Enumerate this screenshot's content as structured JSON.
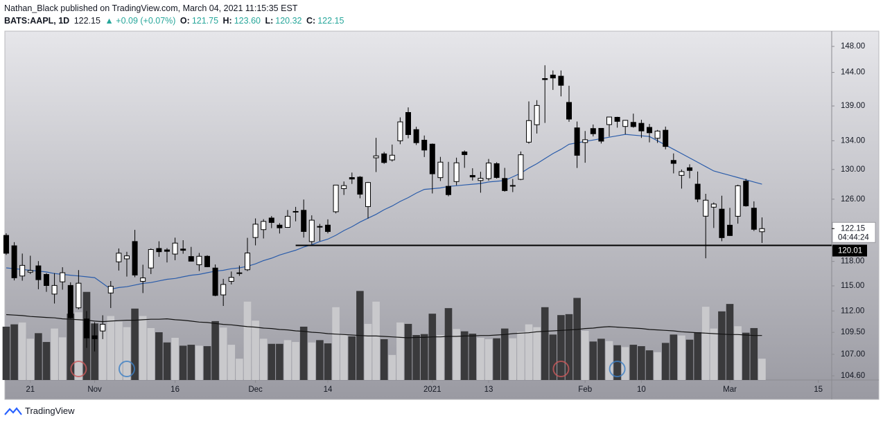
{
  "header": {
    "publisher": "Nathan_Black published on TradingView.com, March 04, 2021 11:15:35 EST",
    "symbol": "BATS:AAPL, 1D",
    "last": "122.15",
    "change": "▲ +0.09 (+0.07%)",
    "o_label": "O:",
    "o": "121.75",
    "h_label": "H:",
    "h": "123.60",
    "l_label": "L:",
    "l": "120.32",
    "c_label": "C:",
    "c": "122.15"
  },
  "chart_data": {
    "type": "candlestick",
    "candles": [
      [
        121.28,
        121.55,
        118.81,
        119.02
      ],
      [
        119.96,
        120.42,
        115.66,
        115.98
      ],
      [
        116.2,
        118.98,
        115.63,
        117.51
      ],
      [
        116.67,
        118.71,
        116.45,
        116.87
      ],
      [
        117.45,
        118.04,
        114.59,
        115.75
      ],
      [
        116.39,
        116.55,
        114.28,
        115.04
      ],
      [
        114.01,
        116.55,
        112.88,
        115.05
      ],
      [
        115.49,
        117.28,
        114.54,
        116.6
      ],
      [
        115.05,
        115.43,
        111.1,
        111.2
      ],
      [
        112.37,
        116.93,
        112.2,
        115.32
      ],
      [
        111.06,
        111.99,
        107.72,
        108.86
      ],
      [
        109.11,
        110.68,
        107.32,
        108.77
      ],
      [
        109.66,
        111.49,
        108.73,
        110.44
      ],
      [
        114.14,
        115.59,
        112.35,
        114.95
      ],
      [
        117.95,
        119.62,
        116.87,
        119.03
      ],
      [
        118.32,
        119.2,
        116.13,
        118.69
      ],
      [
        120.5,
        121.99,
        116.05,
        116.32
      ],
      [
        115.55,
        117.59,
        114.13,
        115.97
      ],
      [
        117.19,
        119.63,
        116.44,
        119.49
      ],
      [
        119.62,
        120.53,
        118.57,
        119.21
      ],
      [
        119.44,
        119.67,
        117.87,
        119.26
      ],
      [
        118.92,
        120.99,
        118.15,
        120.3
      ],
      [
        119.55,
        120.67,
        118.96,
        119.39
      ],
      [
        118.61,
        119.82,
        118.0,
        118.03
      ],
      [
        117.59,
        119.06,
        116.81,
        118.64
      ],
      [
        118.64,
        118.77,
        117.29,
        117.34
      ],
      [
        117.18,
        117.62,
        113.75,
        113.85
      ],
      [
        113.91,
        115.85,
        112.59,
        115.17
      ],
      [
        115.55,
        116.75,
        115.17,
        116.03
      ],
      [
        116.57,
        117.49,
        116.22,
        116.59
      ],
      [
        116.97,
        120.97,
        116.81,
        119.05
      ],
      [
        121.01,
        123.47,
        120.01,
        122.72
      ],
      [
        122.02,
        123.37,
        120.89,
        123.08
      ],
      [
        123.52,
        123.78,
        122.21,
        122.94
      ],
      [
        122.6,
        122.86,
        121.52,
        122.25
      ],
      [
        122.31,
        124.57,
        122.25,
        123.75
      ],
      [
        124.37,
        124.98,
        123.09,
        124.38
      ],
      [
        124.53,
        125.95,
        121.0,
        121.78
      ],
      [
        120.5,
        123.87,
        120.15,
        123.24
      ],
      [
        122.43,
        122.76,
        120.55,
        122.41
      ],
      [
        122.6,
        123.35,
        121.54,
        121.78
      ],
      [
        124.34,
        127.9,
        124.13,
        127.88
      ],
      [
        127.41,
        128.37,
        126.56,
        127.81
      ],
      [
        128.9,
        129.58,
        128.04,
        128.7
      ],
      [
        128.96,
        129.1,
        126.12,
        126.66
      ],
      [
        125.02,
        128.31,
        123.45,
        128.23
      ],
      [
        131.61,
        134.41,
        129.65,
        131.88
      ],
      [
        132.16,
        132.43,
        130.78,
        130.96
      ],
      [
        131.32,
        133.46,
        131.1,
        131.97
      ],
      [
        133.99,
        137.34,
        133.51,
        136.69
      ],
      [
        138.05,
        138.79,
        134.34,
        134.87
      ],
      [
        135.58,
        135.99,
        133.4,
        133.72
      ],
      [
        134.08,
        134.74,
        131.72,
        132.69
      ],
      [
        133.52,
        133.61,
        126.76,
        129.41
      ],
      [
        128.89,
        131.74,
        128.43,
        131.01
      ],
      [
        127.72,
        131.05,
        126.38,
        126.6
      ],
      [
        128.36,
        131.63,
        127.86,
        130.92
      ],
      [
        132.43,
        132.63,
        130.23,
        132.05
      ],
      [
        129.19,
        130.17,
        128.5,
        128.98
      ],
      [
        128.5,
        129.69,
        126.86,
        128.8
      ],
      [
        128.76,
        131.45,
        128.49,
        130.89
      ],
      [
        130.8,
        131.0,
        128.76,
        128.91
      ],
      [
        128.78,
        130.22,
        127.0,
        127.14
      ],
      [
        127.78,
        128.71,
        126.94,
        127.83
      ],
      [
        128.66,
        132.49,
        128.55,
        132.03
      ],
      [
        133.8,
        139.67,
        133.59,
        136.87
      ],
      [
        136.28,
        139.85,
        135.02,
        139.07
      ],
      [
        143.07,
        145.09,
        136.54,
        142.92
      ],
      [
        143.6,
        144.3,
        141.37,
        143.16
      ],
      [
        143.43,
        144.3,
        140.41,
        142.06
      ],
      [
        139.52,
        141.99,
        136.7,
        137.09
      ],
      [
        135.83,
        136.74,
        130.21,
        131.96
      ],
      [
        133.75,
        135.38,
        130.93,
        134.14
      ],
      [
        135.73,
        136.31,
        134.61,
        134.99
      ],
      [
        135.76,
        135.77,
        133.61,
        133.94
      ],
      [
        136.3,
        137.4,
        134.59,
        137.39
      ],
      [
        137.35,
        137.42,
        135.86,
        136.76
      ],
      [
        136.03,
        136.96,
        134.92,
        136.91
      ],
      [
        136.62,
        137.88,
        135.85,
        136.01
      ],
      [
        136.48,
        136.99,
        134.4,
        135.39
      ],
      [
        135.9,
        136.39,
        133.77,
        135.13
      ],
      [
        134.35,
        135.53,
        133.69,
        135.37
      ],
      [
        135.49,
        136.01,
        132.79,
        133.19
      ],
      [
        131.25,
        132.22,
        129.47,
        130.84
      ],
      [
        129.2,
        130.0,
        127.41,
        129.71
      ],
      [
        130.24,
        130.71,
        128.8,
        129.87
      ],
      [
        128.01,
        129.72,
        125.6,
        126.0
      ],
      [
        123.76,
        126.71,
        118.39,
        125.86
      ],
      [
        124.94,
        125.56,
        122.23,
        125.35
      ],
      [
        124.68,
        126.46,
        120.54,
        120.99
      ],
      [
        122.59,
        124.85,
        121.2,
        121.26
      ],
      [
        123.75,
        127.93,
        122.79,
        127.79
      ],
      [
        128.41,
        128.72,
        125.01,
        125.12
      ],
      [
        124.81,
        125.71,
        121.84,
        122.06
      ],
      [
        121.75,
        123.6,
        120.32,
        122.15
      ]
    ],
    "volume": [
      115,
      120,
      124,
      89,
      101,
      82,
      111,
      92,
      143,
      146,
      190,
      122,
      107,
      138,
      126,
      114,
      154,
      138,
      112,
      103,
      81,
      91,
      74,
      76,
      74,
      73,
      127,
      113,
      76,
      46,
      169,
      128,
      89,
      78,
      78,
      86,
      82,
      115,
      81,
      86,
      79,
      157,
      98,
      94,
      192,
      121,
      169,
      88,
      54,
      124,
      121,
      97,
      99,
      143,
      97,
      155,
      110,
      105,
      100,
      91,
      88,
      90,
      111,
      90,
      104,
      120,
      114,
      157,
      98,
      140,
      142,
      177,
      106,
      83,
      89,
      84,
      75,
      71,
      76,
      73,
      64,
      60,
      80,
      98,
      96,
      87,
      103,
      158,
      111,
      148,
      164,
      116,
      102,
      112,
      46
    ],
    "ma": {
      "color": "#2a5caa",
      "values": [
        117.2,
        117.1,
        117.0,
        116.9,
        116.8,
        116.7,
        116.5,
        116.4,
        116.3,
        116.2,
        116.1,
        116.0,
        115.3,
        114.6,
        114.8,
        114.9,
        115.1,
        115.3,
        115.4,
        115.6,
        115.8,
        115.9,
        116.1,
        116.3,
        116.4,
        116.6,
        116.8,
        116.9,
        117.1,
        117.2,
        117.4,
        117.7,
        118.1,
        118.4,
        118.8,
        119.1,
        119.4,
        119.8,
        120.1,
        120.5,
        120.8,
        121.3,
        121.9,
        122.4,
        123.0,
        123.5,
        124.0,
        124.6,
        125.1,
        125.7,
        126.2,
        126.8,
        127.3,
        127.4,
        127.5,
        127.7,
        127.8,
        127.9,
        128.0,
        128.1,
        128.3,
        128.4,
        128.5,
        129.0,
        129.5,
        130.2,
        130.8,
        131.5,
        132.2,
        132.8,
        133.5,
        133.7,
        133.9,
        134.1,
        134.3,
        134.5,
        134.7,
        134.9,
        134.8,
        134.7,
        134.6,
        134.0,
        133.4,
        132.8,
        132.2,
        131.6,
        131.0,
        130.4,
        129.8,
        129.5,
        129.2,
        128.9,
        128.6,
        128.3,
        128.0
      ]
    },
    "volume_ma": {
      "color": "#111111",
      "values": [
        141,
        140,
        139,
        137,
        136,
        135,
        134,
        132,
        131,
        130,
        129,
        127,
        126,
        127,
        128,
        129,
        129,
        130,
        131,
        131,
        132,
        130,
        129,
        127,
        125,
        124,
        122,
        120,
        119,
        117,
        115,
        114,
        112,
        111,
        109,
        108,
        106,
        105,
        103,
        102,
        100,
        99,
        98,
        97,
        96,
        95,
        95,
        94,
        93,
        92,
        91,
        92,
        92,
        93,
        93,
        94,
        94,
        95,
        95,
        96,
        96,
        97,
        98,
        100,
        101,
        102,
        104,
        105,
        106,
        107,
        108,
        109,
        111,
        112,
        114,
        115,
        114,
        113,
        112,
        111,
        109,
        108,
        107,
        106,
        104,
        103,
        102,
        101,
        100,
        99,
        98,
        98,
        97,
        96,
        96
      ]
    },
    "up_color": "#ffffff",
    "down_color": "#000000",
    "up_volume_color": "#c9c9cc",
    "down_volume_color": "#3a3a3c",
    "log_scale": true,
    "ylim": [
      104.14,
      150.4
    ],
    "yticks": [
      {
        "value": 148,
        "label": "148.00"
      },
      {
        "value": 144,
        "label": "144.00"
      },
      {
        "value": 139,
        "label": "139.00"
      },
      {
        "value": 134,
        "label": "134.00"
      },
      {
        "value": 130,
        "label": "130.00"
      },
      {
        "value": 126,
        "label": "126.00"
      },
      {
        "value": 118,
        "label": "118.00"
      },
      {
        "value": 115,
        "label": "115.00"
      },
      {
        "value": 112,
        "label": "112.00"
      },
      {
        "value": 109.5,
        "label": "109.50"
      },
      {
        "value": 107,
        "label": "107.00"
      },
      {
        "value": 104.6,
        "label": "104.60"
      }
    ],
    "xlim": [
      -0.17,
      102.67
    ],
    "xticks": [
      {
        "value": 3,
        "label": "21"
      },
      {
        "value": 11,
        "label": "Nov"
      },
      {
        "value": 21,
        "label": "16"
      },
      {
        "value": 31,
        "label": "Dec"
      },
      {
        "value": 40,
        "label": "14"
      },
      {
        "value": 53,
        "label": "2021"
      },
      {
        "value": 60,
        "label": "13"
      },
      {
        "value": 72,
        "label": "Feb"
      },
      {
        "value": 79,
        "label": "10"
      },
      {
        "value": 90,
        "label": "Mar"
      },
      {
        "value": 101,
        "label": "15"
      }
    ],
    "volume_lim": [
      0,
      200
    ],
    "hline": {
      "value": 120.01,
      "label": "120.01",
      "start_index": 36
    },
    "last_price": {
      "value": 122.15,
      "label": "122.15",
      "countdown": "04:44:24"
    },
    "events": [
      {
        "index": 9,
        "color": "#c9595a"
      },
      {
        "index": 15,
        "color": "#3d7fc4"
      },
      {
        "index": 69,
        "color": "#c9595a"
      },
      {
        "index": 76,
        "color": "#3d7fc4"
      }
    ]
  },
  "footer": {
    "brand": "TradingView"
  }
}
